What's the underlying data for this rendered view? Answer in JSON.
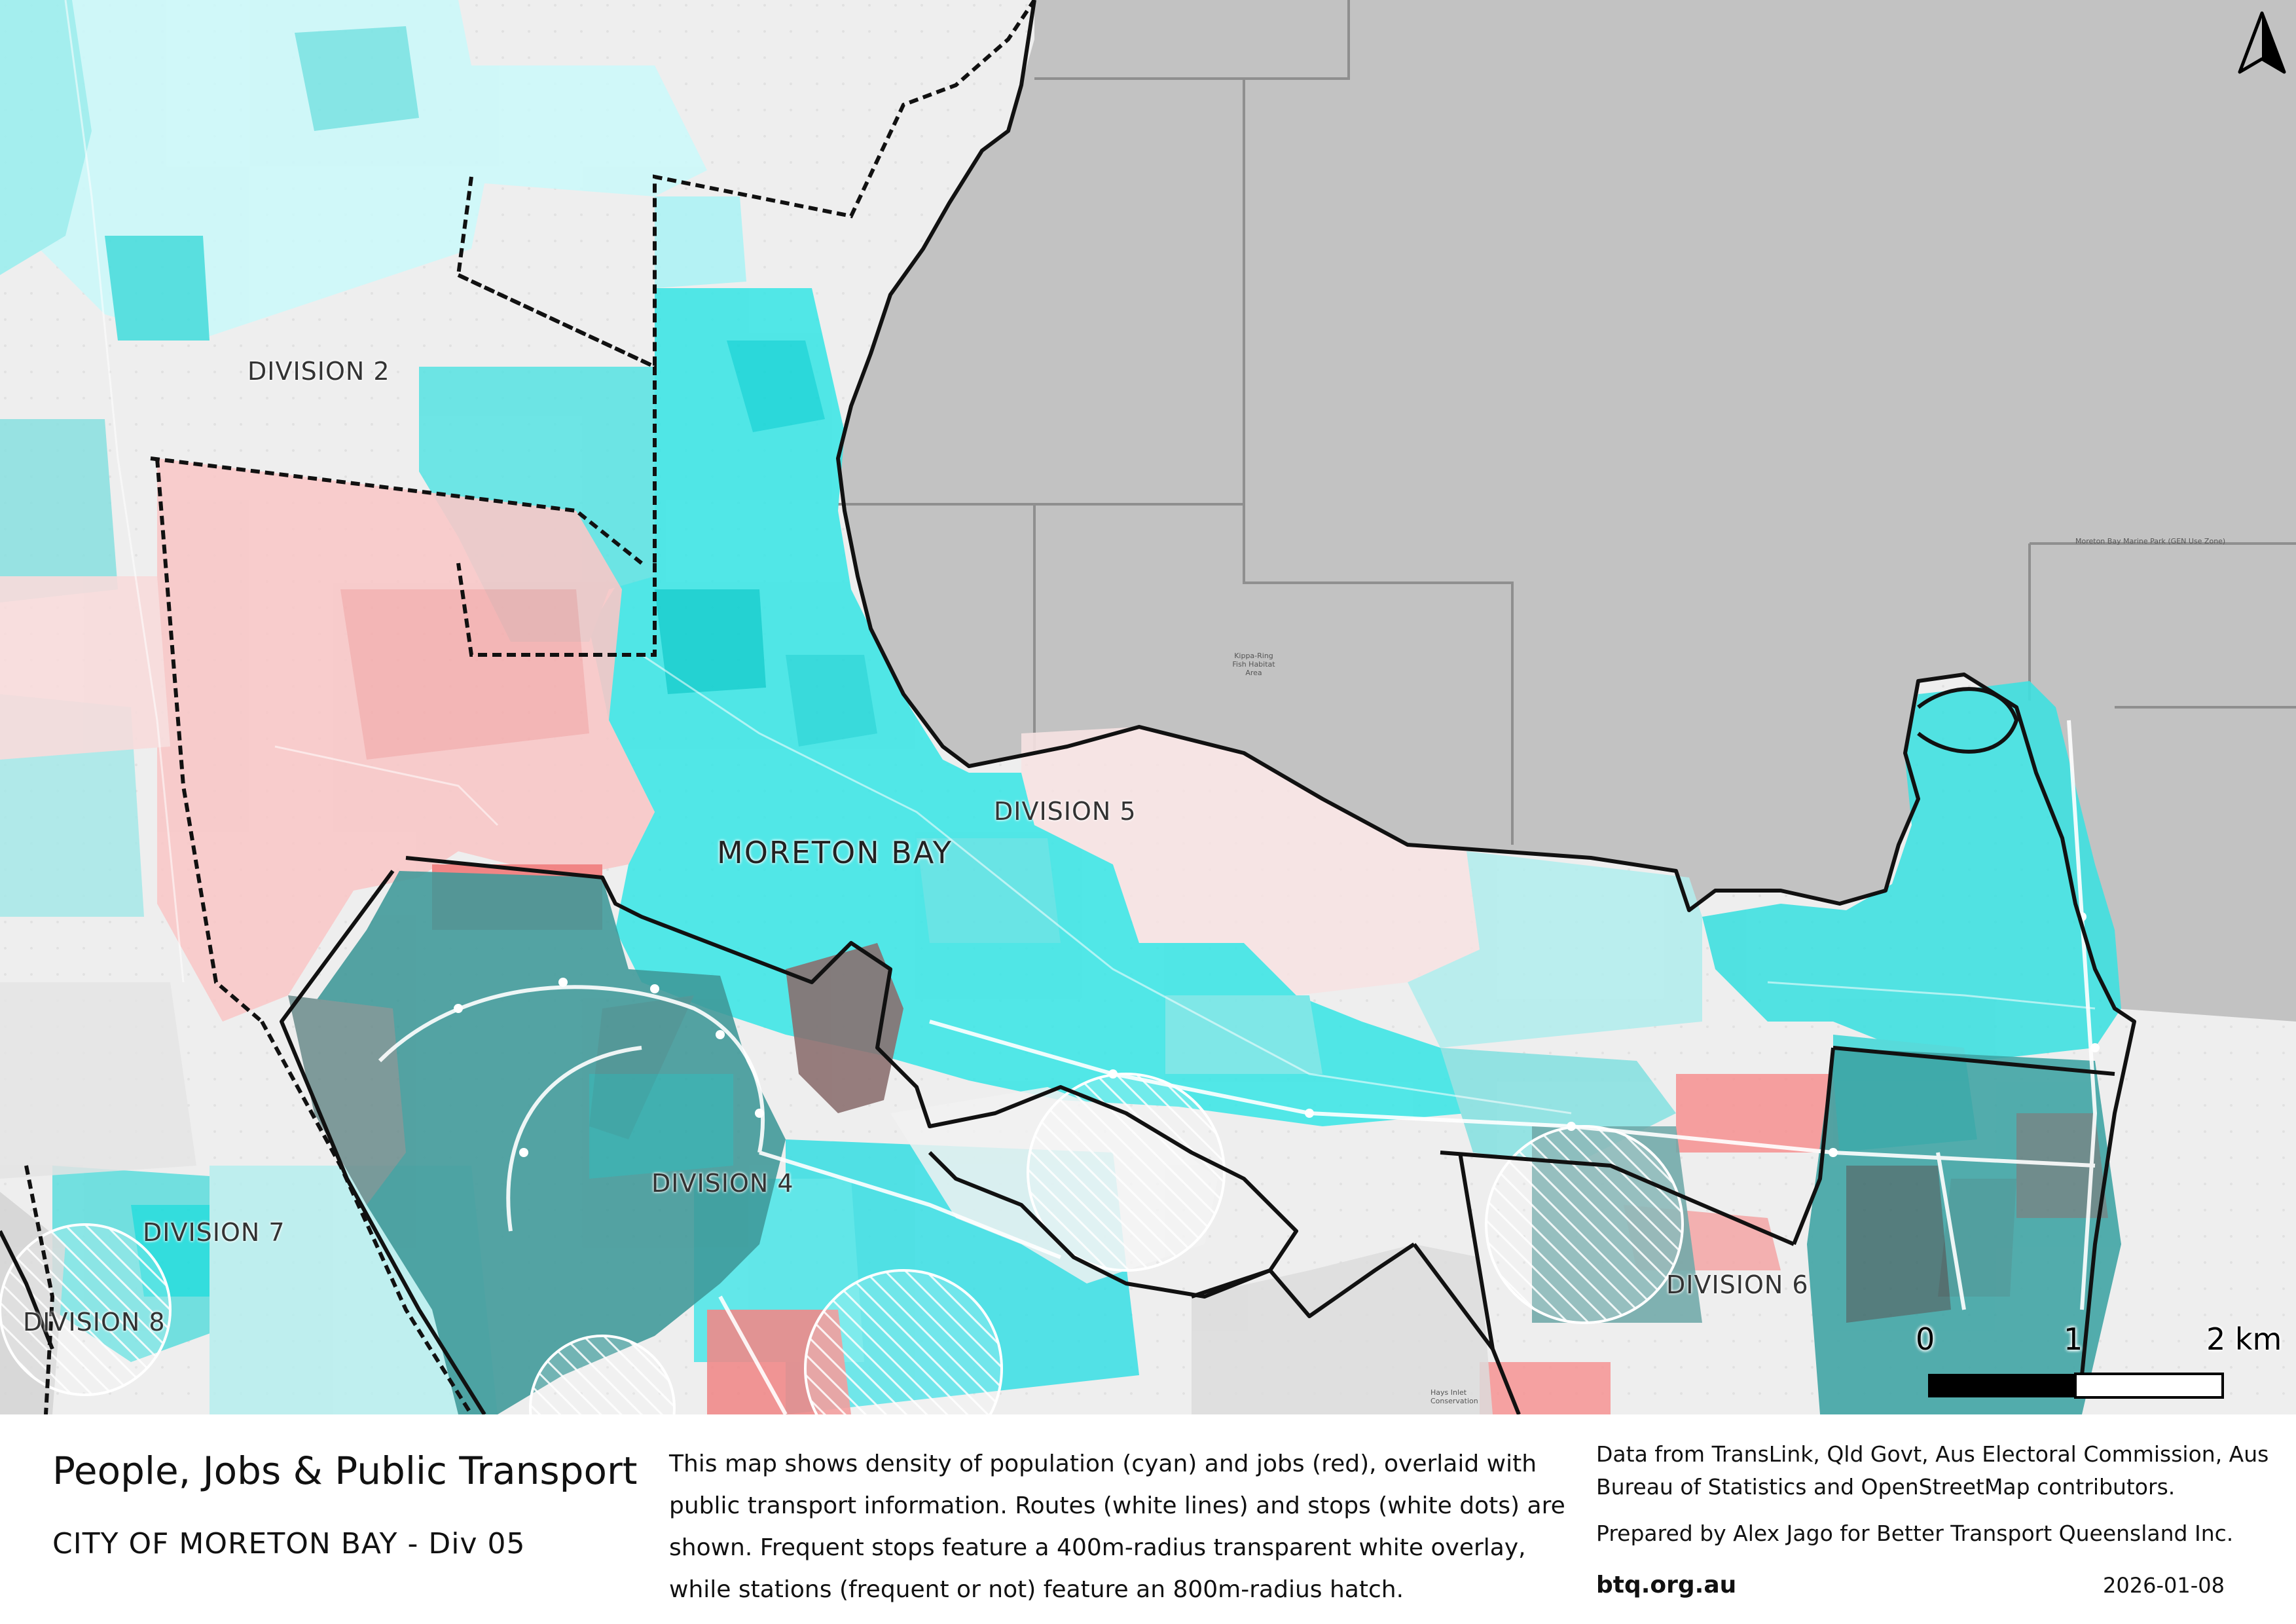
{
  "map": {
    "bay_label": "MORETON BAY",
    "division_labels": {
      "div2": "DIVISION 2",
      "div4": "DIVISION 4",
      "div5": "DIVISION 5",
      "div6": "DIVISION 6",
      "div7": "DIVISION 7",
      "div8": "DIVISION 8"
    },
    "tiny_labels": {
      "habitat": "Kippa-Ring Fish Habitat Area",
      "marine_park": "Moreton Bay Marine Park (GEN Use Zone)",
      "conservation": "Hays Inlet Conservation"
    },
    "colors": {
      "population": "#3fe6e6",
      "jobs": "#f27a7a",
      "water": "#c2c2c2",
      "boundary": "#111111"
    },
    "icons": {
      "north": "north-arrow-icon"
    }
  },
  "scale_bar": {
    "labels": [
      "0",
      "1",
      "2 km"
    ]
  },
  "footer": {
    "title": "People, Jobs & Public Transport",
    "subtitle": "CITY OF MORETON BAY - Div 05",
    "description": "This map shows density of population (cyan) and jobs (red), overlaid with public transport information. Routes (white lines) and stops (white dots) are shown. Frequent stops feature a 400m-radius transparent white overlay, while stations (frequent or not) feature an 800m-radius hatch.",
    "credits": "Data from TransLink,  Qld Govt,  Aus Electoral Commission, Aus Bureau of Statistics and OpenStreetMap contributors.",
    "prepared_by": "Prepared by Alex Jago for Better Transport Queensland Inc.",
    "website": "btq.org.au",
    "date": "2026-01-08"
  }
}
